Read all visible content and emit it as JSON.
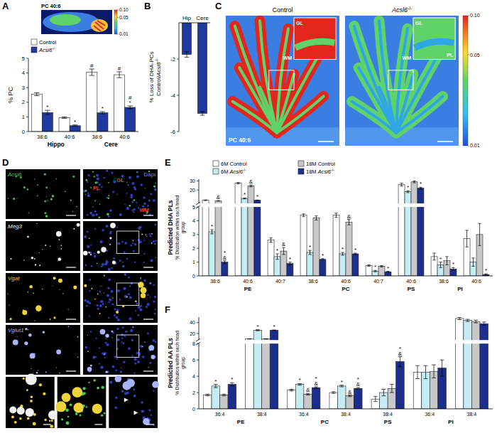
{
  "chart_data": [
    {
      "panel": "A",
      "type": "bar",
      "ylabel": "% PC",
      "categories": [
        "38:6",
        "40:6",
        "38:6",
        "40:6"
      ],
      "groups": [
        "Hippo",
        "Hippo",
        "Cere",
        "Cere"
      ],
      "ylim": [
        0,
        5
      ],
      "yticks": [
        0,
        1,
        2,
        3,
        4,
        5
      ],
      "legend": "top-left",
      "series": [
        {
          "name": "Control",
          "color": "#ffffff",
          "values": [
            2.55,
            0.95,
            4.05,
            3.88
          ],
          "errors": [
            0.1,
            0.05,
            0.22,
            0.2
          ],
          "significance": [
            null,
            null,
            "#",
            "#"
          ]
        },
        {
          "name": "Acsl6-/-",
          "color": "#1f3a9e",
          "values": [
            1.3,
            0.4,
            1.28,
            1.65
          ],
          "errors": [
            0.15,
            0.05,
            0.08,
            0.1
          ],
          "significance": [
            "*",
            "*",
            "*",
            "#*"
          ]
        }
      ],
      "inset": {
        "title": "PC 40:6",
        "colorbar": {
          "range": [
            0.01,
            0.1
          ],
          "ticks": [
            {
              "value": 0.1,
              "label": "0.10"
            },
            {
              "value": 0.05,
              "label": "0.05"
            },
            {
              "value": 0.01,
              "label": "0.01"
            }
          ]
        }
      }
    },
    {
      "panel": "B",
      "type": "bar",
      "ylabel": "% Loss of DHA-PCs Control/Acsl6-/-",
      "categories": [
        "Hip",
        "Cere"
      ],
      "values": [
        -1.75,
        -5.0
      ],
      "errors": [
        0.15,
        0.1
      ],
      "color": "#1f3a9e",
      "ylim": [
        -6,
        0
      ],
      "yticks": [
        -6,
        -4,
        -2
      ]
    },
    {
      "panel": "E",
      "type": "bar",
      "title": "Predicted DHA PLs",
      "ylabel": "% Distribution within each head group",
      "categories": [
        "38:6",
        "40:6",
        "40:7",
        "38:6",
        "40:6",
        "40:7",
        "40:6",
        "38:6",
        "40:6"
      ],
      "groups": [
        "PE",
        "PE",
        "PE",
        "PC",
        "PC",
        "PC",
        "PS",
        "PI",
        "PI"
      ],
      "ylim": [
        0,
        32
      ],
      "y_break": 5,
      "yticks": [
        0,
        1,
        2,
        3,
        4,
        5,
        20,
        30
      ],
      "legend": "top",
      "series": [
        {
          "name": "6M Control",
          "color": "#ffffff",
          "values": [
            8.5,
            27.5,
            2.6,
            4.4,
            4.4,
            0.75,
            26.0,
            1.4,
            2.7
          ],
          "errors": [
            0.4,
            0.8,
            0.15,
            0.1,
            0.15,
            0.05,
            1.5,
            0.25,
            0.6
          ],
          "significance": [
            null,
            null,
            null,
            null,
            null,
            null,
            null,
            null,
            null
          ]
        },
        {
          "name": "6M Acsl6-/-",
          "color": "#c5ecf3",
          "values": [
            3.2,
            10.5,
            1.4,
            1.7,
            1.6,
            0.35,
            18.0,
            0.8,
            1.0
          ],
          "errors": [
            0.15,
            0.5,
            0.2,
            0.15,
            0.1,
            0.05,
            1.0,
            0.2,
            0.3
          ],
          "significance": [
            "*",
            "*",
            "*",
            "*",
            "*",
            "*",
            "*",
            "*",
            null
          ]
        },
        {
          "name": "18M Control",
          "color": "#c8c8c8",
          "values": [
            7.8,
            24.5,
            1.8,
            4.2,
            3.9,
            0.7,
            29.0,
            1.1,
            3.0
          ],
          "errors": [
            0.3,
            1.0,
            0.25,
            0.15,
            0.2,
            0.05,
            1.0,
            0.3,
            0.8
          ],
          "significance": [
            "&",
            "&",
            "&",
            null,
            "&",
            null,
            null,
            null,
            null
          ]
        },
        {
          "name": "18M Acsl6-/-",
          "color": "#1c2e8c",
          "values": [
            1.0,
            8.5,
            0.9,
            1.2,
            1.6,
            0.3,
            22.0,
            0.5,
            0.1
          ],
          "errors": [
            0.1,
            0.3,
            0.1,
            0.05,
            0.05,
            0.03,
            1.0,
            0.1,
            0.05
          ],
          "significance": [
            "*&",
            "*",
            "*",
            "*",
            "*",
            "*",
            "*",
            "*",
            "*"
          ]
        }
      ]
    },
    {
      "panel": "F",
      "type": "bar",
      "title": "Predicted AA PLs",
      "ylabel": "% Distribution within each head group",
      "categories": [
        "36:4",
        "38:4",
        "36:4",
        "38:4",
        "38:4",
        "36:4",
        "38:4"
      ],
      "groups": [
        "PE",
        "PE",
        "PC",
        "PC",
        "PS",
        "PI",
        "PI"
      ],
      "ylim": [
        0,
        50
      ],
      "y_break": 8,
      "yticks": [
        0,
        2,
        4,
        6,
        8,
        20,
        40
      ],
      "series": [
        {
          "color": "#ffffff",
          "values": [
            1.7,
            10.0,
            2.3,
            2.0,
            1.2,
            4.5,
            47.5
          ],
          "errors": [
            0.1,
            0.3,
            0.1,
            0.1,
            0.3,
            0.8,
            2.0
          ],
          "significance": [
            null,
            null,
            null,
            null,
            null,
            null,
            null
          ]
        },
        {
          "color": "#c5ecf3",
          "values": [
            2.8,
            26.0,
            3.0,
            2.8,
            2.0,
            4.5,
            44.0
          ],
          "errors": [
            0.2,
            1.0,
            0.1,
            0.1,
            0.4,
            0.8,
            2.0
          ],
          "significance": [
            "*",
            "*",
            "*",
            "*",
            null,
            null,
            null
          ]
        },
        {
          "color": "#c8c8c8",
          "values": [
            1.7,
            10.0,
            1.8,
            1.6,
            2.5,
            4.6,
            42.0
          ],
          "errors": [
            0.1,
            0.3,
            0.1,
            0.1,
            0.5,
            0.8,
            2.5
          ],
          "significance": [
            null,
            null,
            "&",
            "&",
            null,
            null,
            null
          ]
        },
        {
          "color": "#1c2e8c",
          "values": [
            3.0,
            26.0,
            2.6,
            2.5,
            5.8,
            5.0,
            38.0
          ],
          "errors": [
            0.2,
            0.5,
            0.1,
            0.1,
            0.6,
            1.0,
            3.0
          ],
          "significance": [
            "*",
            "*",
            "*&",
            "*&",
            "*&",
            null,
            null
          ]
        }
      ]
    }
  ],
  "images": [
    {
      "panel": "C",
      "panels": [
        {
          "title": "Control",
          "labels": [
            "GL",
            "WM"
          ]
        },
        {
          "title": "Acsl6-/-",
          "labels": [
            "GL",
            "WM",
            "PL"
          ]
        }
      ],
      "caption": "PC 40:6",
      "colorbar": {
        "range": [
          0.01,
          0.1
        ],
        "ticks": [
          {
            "value": 0.1,
            "label": "0.10"
          },
          {
            "value": 0.05,
            "label": "0.05"
          },
          {
            "value": 0.01,
            "label": "0.01"
          }
        ]
      }
    },
    {
      "panel": "D",
      "rows": [
        {
          "stain": "Acsl6",
          "merge": "Dapi",
          "regions": [
            "PL",
            "GL",
            "WM"
          ]
        },
        {
          "stain": "Meg3"
        },
        {
          "stain": "Vgat"
        },
        {
          "stain": "Vglut1"
        }
      ]
    }
  ]
}
